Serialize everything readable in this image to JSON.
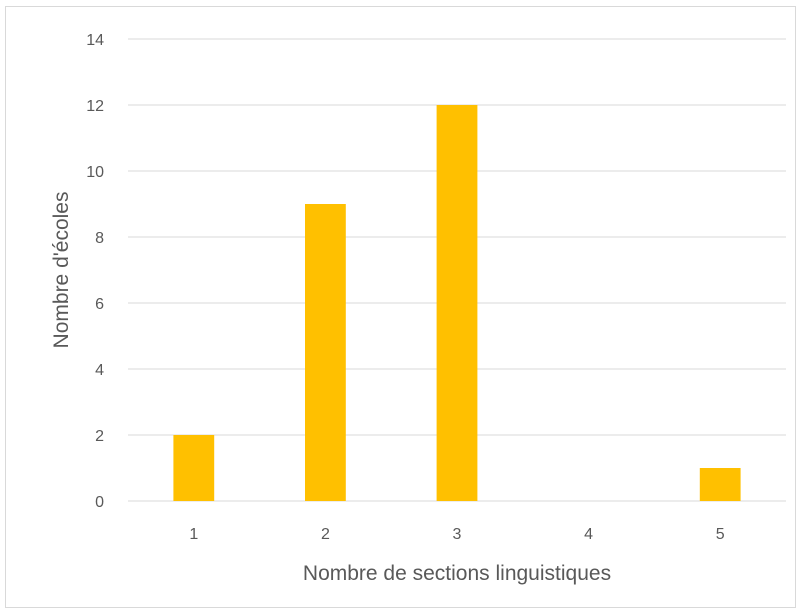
{
  "chart_data": {
    "type": "bar",
    "title": "",
    "xlabel": "Nombre de sections linguistiques",
    "ylabel": "Nombre d'écoles",
    "categories": [
      "1",
      "2",
      "3",
      "4",
      "5"
    ],
    "values": [
      2,
      9,
      12,
      0,
      1
    ],
    "ylim": [
      0,
      14
    ],
    "yticks": [
      0,
      2,
      4,
      6,
      8,
      10,
      12,
      14
    ],
    "grid": true,
    "legend": "none",
    "bar_color": "#FFC000",
    "grid_color": "#D9D9D9",
    "text_color": "#595959"
  }
}
